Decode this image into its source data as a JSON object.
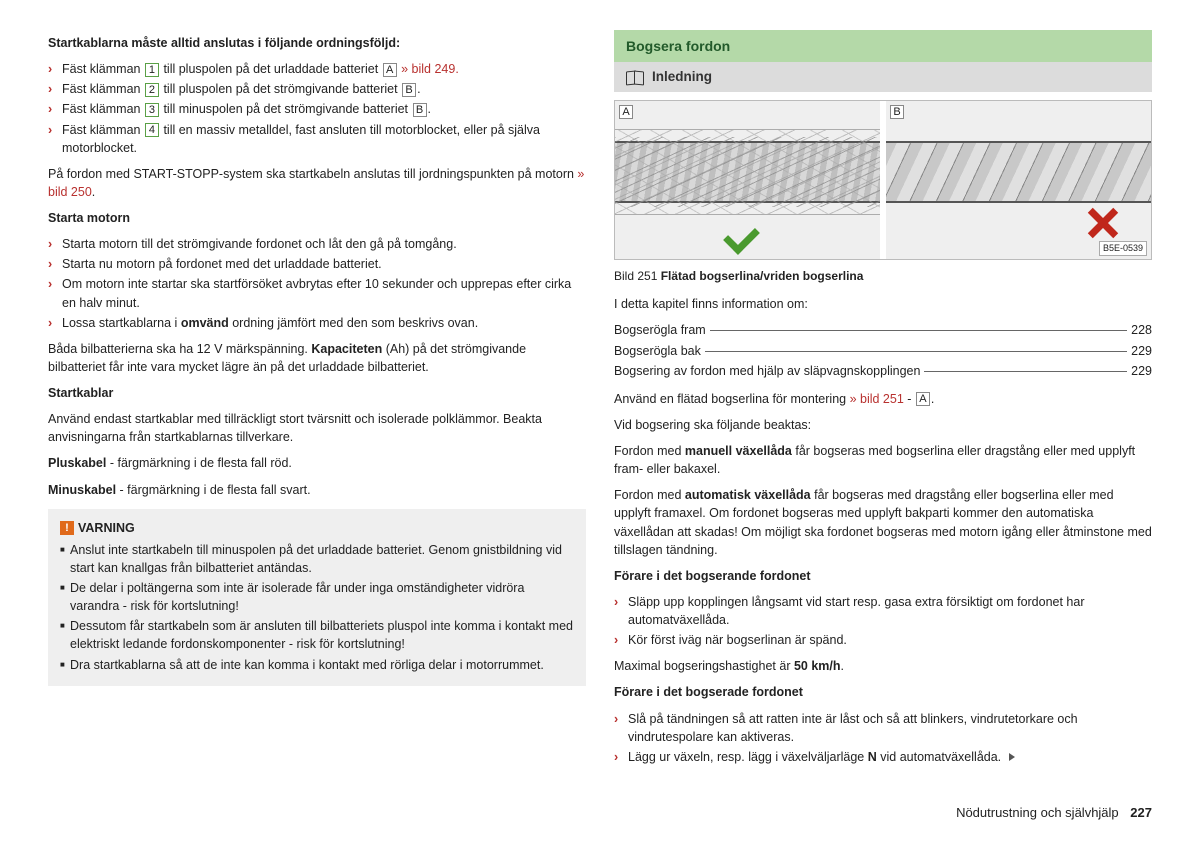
{
  "left": {
    "intro": "Startkablarna måste alltid anslutas i följande ordningsföljd:",
    "steps": [
      {
        "pre": "Fäst klämman ",
        "num": "1",
        "mid": " till pluspolen på det urladdade batteriet ",
        "let": "A",
        "post": " » bild 249.",
        "linkEnd": true
      },
      {
        "pre": "Fäst klämman ",
        "num": "2",
        "mid": " till pluspolen på det strömgivande batteriet ",
        "let": "B",
        "post": "."
      },
      {
        "pre": "Fäst klämman ",
        "num": "3",
        "mid": " till minuspolen på det strömgivande batteriet ",
        "let": "B",
        "post": "."
      },
      {
        "pre": "Fäst klämman ",
        "num": "4",
        "mid": " till en massiv metalldel, fast ansluten till motorblocket, eller på själva motorblocket.",
        "let": "",
        "post": ""
      }
    ],
    "p1a": "På fordon med START-STOPP-system ska startkabeln anslutas till jordningspunkten på motorn ",
    "p1b": "» bild 250",
    "p1c": ".",
    "startTitle": "Starta motorn",
    "startList": [
      "Starta motorn till det strömgivande fordonet och låt den gå på tomgång.",
      "Starta nu motorn på fordonet med det urladdade batteriet.",
      "Om motorn inte startar ska startförsöket avbrytas efter 10 sekunder och upprepas efter cirka en halv minut."
    ],
    "startLast_pre": "Lossa startkablarna i ",
    "startLast_bold": "omvänd",
    "startLast_post": " ordning jämfört med den som beskrivs ovan.",
    "p2a": "Båda bilbatterierna ska ha 12 V märkspänning. ",
    "p2b": "Kapaciteten",
    "p2c": " (Ah) på det strömgivande bilbatteriet får inte vara mycket lägre än på det urladdade bilbatteriet.",
    "skTitle": "Startkablar",
    "skText": "Använd endast startkablar med tillräckligt stort tvärsnitt och isolerade polklämmor. Beakta anvisningarna från startkablarnas tillverkare.",
    "plus_b": "Pluskabel",
    "plus_t": " - färgmärkning i de flesta fall röd.",
    "minus_b": "Minuskabel",
    "minus_t": " - färgmärkning i de flesta fall svart.",
    "warnTitle": "VARNING",
    "warnItems": [
      "Anslut inte startkabeln till minuspolen på det urladdade batteriet. Genom gnistbildning vid start kan knallgas från bilbatteriet antändas.",
      "De delar i poltängerna som inte är isolerade får under inga omständigheter vidröra varandra - risk för kortslutning!",
      "Dessutom får startkabeln som är ansluten till bilbatteriets pluspol inte komma i kontakt med elektriskt ledande fordonskomponenter - risk för kortslutning!",
      "Dra startkablarna så att de inte kan komma i kontakt med rörliga delar i motorrummet."
    ]
  },
  "right": {
    "sectionTitle": "Bogsera fordon",
    "subTitle": "Inledning",
    "figTagA": "A",
    "figTagB": "B",
    "figCode": "B5E-0539",
    "caption_pre": "Bild 251   ",
    "caption_bold": "Flätad bogserlina/vriden bogserlina",
    "tocIntro": "I detta kapitel finns information om:",
    "toc": [
      {
        "label": "Bogserögla fram",
        "page": "228"
      },
      {
        "label": "Bogserögla bak",
        "page": "229"
      },
      {
        "label": "Bogsering av fordon med hjälp av släpvagnskopplingen",
        "page": "229"
      }
    ],
    "p1a": "Använd en flätad bogserlina för montering ",
    "p1b": "» bild 251",
    "p1c": " - ",
    "p1let": "A",
    "p1d": ".",
    "p2": "Vid bogsering ska följande beaktas:",
    "p3a": "Fordon med ",
    "p3b": "manuell växellåda",
    "p3c": " får bogseras med bogserlina eller dragstång eller med upplyft fram- eller bakaxel.",
    "p4a": "Fordon med ",
    "p4b": "automatisk växellåda",
    "p4c": " får bogseras med dragstång eller bogserlina eller med upplyft framaxel. Om fordonet bogseras med upplyft bakparti kommer den automatiska växellådan att skadas! Om möjligt ska fordonet bogseras med motorn igång eller åtminstone med tillslagen tändning.",
    "h1": "Förare i det bogserande fordonet",
    "h1list": [
      "Släpp upp kopplingen långsamt vid start resp. gasa extra försiktigt om fordonet har automatväxellåda.",
      "Kör först iväg när bogserlinan är spänd."
    ],
    "p5a": "Maximal bogseringshastighet är ",
    "p5b": "50 km/h",
    "p5c": ".",
    "h2": "Förare i det bogserade fordonet",
    "h2list": [
      "Slå på tändningen så att ratten inte är låst och så att blinkers, vindrutetorkare och vindrutespolare kan aktiveras."
    ],
    "h2last_pre": "Lägg ur växeln, resp. lägg i växelväljarläge ",
    "h2last_bold": "N",
    "h2last_post": " vid automatväxellåda."
  },
  "footer": {
    "text": "Nödutrustning och självhjälp",
    "page": "227"
  }
}
